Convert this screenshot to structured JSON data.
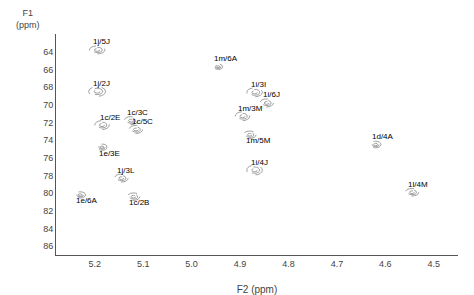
{
  "chart_data": {
    "type": "scatter",
    "xlabel": "F2 (ppm)",
    "ylabel": "F1\n(ppm)",
    "xlim": [
      5.28,
      4.45
    ],
    "ylim": [
      87,
      62
    ],
    "xticks": [
      5.2,
      5.1,
      {
        "value": 5.0,
        "label": "5.0"
      },
      4.9,
      4.8,
      4.7,
      4.6,
      4.5
    ],
    "yticks": [
      64,
      66,
      68,
      70,
      72,
      74,
      76,
      78,
      80,
      82,
      84,
      86
    ],
    "grid": false,
    "x": [
      5.195,
      5.195,
      5.185,
      5.125,
      5.115,
      5.185,
      5.145,
      5.23,
      5.12,
      4.945,
      4.895,
      4.88,
      4.87,
      4.845,
      4.87,
      4.62,
      4.545
    ],
    "y": [
      63.8,
      68.5,
      72.3,
      71.8,
      72.8,
      74.8,
      78.3,
      80.2,
      80.4,
      65.7,
      71.3,
      73.4,
      68.6,
      69.8,
      77.4,
      74.5,
      79.9
    ],
    "labels": [
      "1j/5J",
      "1j/2J",
      "1c/2E",
      "1c/3C",
      "1c/5C",
      "1e/3E",
      "1j/3L",
      "1e/6A",
      "1c/2B",
      "1m/6A",
      "1m/3M",
      "1m/5M",
      "1i/3I",
      "1i/6J",
      "1i/4J",
      "1d/4A",
      "1l/4M"
    ],
    "widths": [
      0.032,
      0.035,
      0.03,
      0.028,
      0.028,
      0.02,
      0.028,
      0.022,
      0.026,
      0.018,
      0.03,
      0.026,
      0.032,
      0.028,
      0.032,
      0.022,
      0.028
    ],
    "heights": [
      0.9,
      1.1,
      1.0,
      0.9,
      0.9,
      0.7,
      0.9,
      0.7,
      0.85,
      0.6,
      1.0,
      0.85,
      1.0,
      0.9,
      1.1,
      0.75,
      0.85
    ]
  }
}
